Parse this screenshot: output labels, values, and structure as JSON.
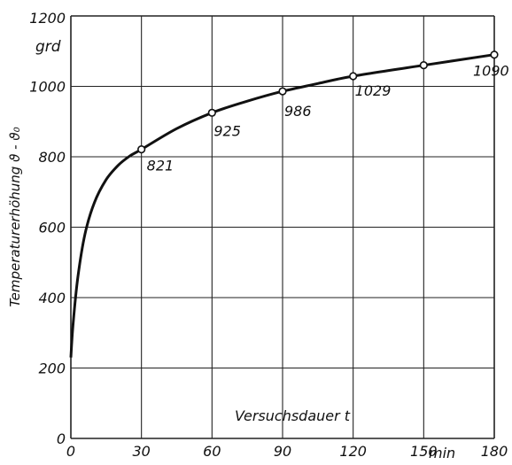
{
  "chart_data": {
    "type": "line",
    "ylabel": "Temperaturerhöhung ϑ - ϑ₀",
    "y_unit": "grd",
    "xlabel": "Versuchsdauer t",
    "x_unit": "min",
    "xlim": [
      0,
      180
    ],
    "ylim": [
      0,
      1200
    ],
    "x_ticks": [
      0,
      30,
      60,
      90,
      120,
      150,
      180
    ],
    "y_ticks": [
      0,
      200,
      400,
      600,
      800,
      1000,
      1200
    ],
    "grid": true,
    "curve": [
      {
        "x": 0,
        "y": 230
      },
      {
        "x": 1,
        "y": 330
      },
      {
        "x": 3,
        "y": 460
      },
      {
        "x": 6,
        "y": 580
      },
      {
        "x": 10,
        "y": 670
      },
      {
        "x": 15,
        "y": 735
      },
      {
        "x": 20,
        "y": 775
      },
      {
        "x": 25,
        "y": 802
      },
      {
        "x": 30,
        "y": 821
      },
      {
        "x": 45,
        "y": 880
      },
      {
        "x": 60,
        "y": 925
      },
      {
        "x": 75,
        "y": 958
      },
      {
        "x": 90,
        "y": 986
      },
      {
        "x": 105,
        "y": 1008
      },
      {
        "x": 120,
        "y": 1029
      },
      {
        "x": 150,
        "y": 1060
      },
      {
        "x": 180,
        "y": 1090
      }
    ],
    "points": [
      {
        "x": 30,
        "y": 821,
        "label": "821"
      },
      {
        "x": 60,
        "y": 925,
        "label": "925"
      },
      {
        "x": 90,
        "y": 986,
        "label": "986"
      },
      {
        "x": 120,
        "y": 1029,
        "label": "1029"
      },
      {
        "x": 150,
        "y": 1060,
        "label": ""
      },
      {
        "x": 180,
        "y": 1090,
        "label": "1090"
      }
    ]
  }
}
